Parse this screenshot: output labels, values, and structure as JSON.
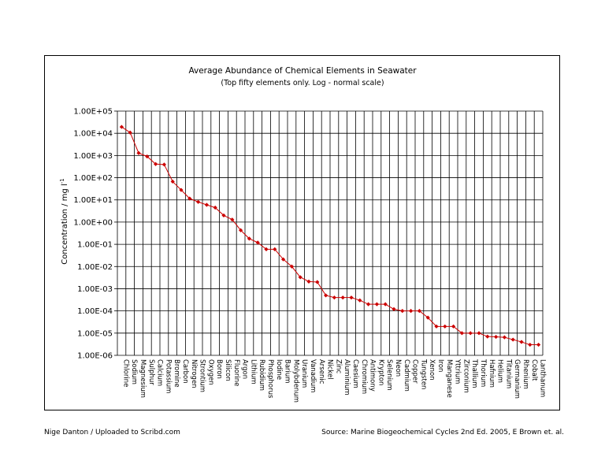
{
  "chart_data": {
    "type": "line",
    "title": "Average Abundance of Chemical Elements in Seawater",
    "subtitle": "(Top fifty elements only. Log - normal scale)",
    "ylabel": "Concentration / mg l-1",
    "ylabel_main": "Concentration / mg l",
    "ylabel_sup": "-1",
    "y_scale": "log",
    "ylim": [
      1e-06,
      100000.0
    ],
    "y_ticks": [
      "1.00E-06",
      "1.00E-05",
      "1.00E-04",
      "1.00E-03",
      "1.00E-02",
      "1.00E-01",
      "1.00E+00",
      "1.00E+01",
      "1.00E+02",
      "1.00E+03",
      "1.00E+04",
      "1.00E+05"
    ],
    "grid": true,
    "series_color": "#cc0000",
    "categories": [
      "Chlorine",
      "Sodium",
      "Magnesium",
      "Sulphur",
      "Calcium",
      "Potassium",
      "Bromine",
      "Carbon",
      "Nitrogen",
      "Strontium",
      "Oxygen",
      "Boron",
      "Silicon",
      "Fluorine",
      "Argon",
      "Lithium",
      "Rubidium",
      "Phosphorus",
      "Iodine",
      "Barium",
      "Molybdenum",
      "Uranium",
      "Vanadium",
      "Arsenic",
      "Nickel",
      "Zinc",
      "Aluminium",
      "Caesium",
      "Chromium",
      "Antimony",
      "Krypton",
      "Selenium",
      "Neon",
      "Cadmium",
      "Copper",
      "Tungsten",
      "Xenon",
      "Iron",
      "Manganese",
      "Yttrium",
      "Zirconium",
      "Thallium",
      "Thorium",
      "Hafnium",
      "Helium",
      "Titanium",
      "Germanium",
      "Rhenium",
      "Cobalt",
      "Lanthanum"
    ],
    "values": [
      19400,
      10800,
      1290,
      904,
      411,
      392,
      67,
      28,
      11.5,
      8.1,
      6,
      4.5,
      2,
      1.3,
      0.43,
      0.18,
      0.12,
      0.06,
      0.06,
      0.021,
      0.01,
      0.0033,
      0.0021,
      0.002,
      0.0005,
      0.0004,
      0.0004,
      0.0004,
      0.0003,
      0.0002,
      0.0002,
      0.0002,
      0.00012,
      0.0001,
      0.0001,
      0.0001,
      5e-05,
      2e-05,
      2e-05,
      2e-05,
      1e-05,
      1e-05,
      1e-05,
      7e-06,
      6.8e-06,
      6.5e-06,
      5.1e-06,
      4e-06,
      3e-06,
      3e-06
    ]
  },
  "footer": {
    "left": "Nige Danton / Uploaded to Scribd.com",
    "right": "Source:  Marine Biogeochemical Cycles 2nd Ed. 2005, E Brown et. al."
  }
}
